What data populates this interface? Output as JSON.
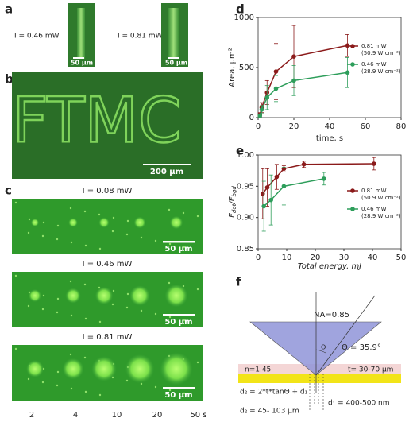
{
  "panel_a": {
    "letter": "a",
    "left_label": "I = 0.46 mW",
    "right_label": "I = 0.81 mW",
    "left_scale": "50 µm",
    "right_scale": "50 µm"
  },
  "panel_b": {
    "letter": "b",
    "pattern_text": "FTMC",
    "scale": "200 µm"
  },
  "panel_c": {
    "letter": "c",
    "rows": [
      {
        "label": "I = 0.08 mW",
        "scale": "50 µm"
      },
      {
        "label": "I = 0.46 mW",
        "scale": "50 µm"
      },
      {
        "label": "I = 0.81 mW",
        "scale": "50 µm"
      }
    ],
    "columns": [
      "2",
      "4",
      "10",
      "20",
      "50 s"
    ]
  },
  "chart_data": [
    {
      "type": "line",
      "letter": "d",
      "xlabel": "time, s",
      "ylabel": "Area, µm²",
      "xlim": [
        0,
        80
      ],
      "xticks": [
        0,
        20,
        40,
        60,
        80
      ],
      "ylim": [
        0,
        1000
      ],
      "yticks": [
        0,
        500,
        1000
      ],
      "series": [
        {
          "name": "0.81 mW",
          "subname": "(50.9 W cm⁻²)",
          "color": "#8b1a1a",
          "x": [
            1,
            2,
            5,
            10,
            20,
            50
          ],
          "values": [
            30,
            100,
            250,
            460,
            610,
            720
          ],
          "errors": [
            20,
            50,
            120,
            280,
            310,
            110
          ]
        },
        {
          "name": "0.46 mW",
          "subname": "(28.9 W cm⁻²)",
          "color": "#2e9e5b",
          "x": [
            1,
            2,
            5,
            10,
            20,
            50
          ],
          "values": [
            20,
            80,
            200,
            290,
            370,
            450
          ],
          "errors": [
            15,
            40,
            120,
            130,
            150,
            150
          ]
        }
      ]
    },
    {
      "type": "line",
      "letter": "e",
      "xlabel": "Total energy, mJ",
      "ylabel": {
        "f1": "F",
        "sub1": "dot",
        "sep": "/F",
        "sub2": "bgd"
      },
      "xlim": [
        0,
        50
      ],
      "xticks": [
        0,
        10,
        20,
        30,
        40,
        50
      ],
      "ylim": [
        0.85,
        1.0
      ],
      "yticks": [
        {
          "value": 0.85,
          "label": "0.85"
        },
        {
          "value": 0.9,
          "label": "0.90"
        },
        {
          "value": 0.95,
          "label": "0.95"
        },
        {
          "value": 1.0,
          "label": "1.00"
        }
      ],
      "series": [
        {
          "name": "0.81 mW",
          "subname": "(50.9 W cm⁻²)",
          "color": "#8b1a1a",
          "x": [
            1.6,
            3.2,
            6.5,
            9,
            16,
            40.5
          ],
          "values": [
            0.938,
            0.948,
            0.965,
            0.978,
            0.985,
            0.986
          ],
          "errors": [
            0.04,
            0.03,
            0.02,
            0.005,
            0.005,
            0.01
          ]
        },
        {
          "name": "0.46 mW",
          "subname": "(28.9 W cm⁻²)",
          "color": "#2e9e5b",
          "x": [
            2,
            4.5,
            9,
            23
          ],
          "values": [
            0.918,
            0.928,
            0.95,
            0.962
          ],
          "errors": [
            0.04,
            0.04,
            0.03,
            0.01
          ]
        }
      ]
    }
  ],
  "panel_f": {
    "letter": "f",
    "na": "NA=0.85",
    "theta_symbol": "Θ",
    "theta": "Θ = 35.9°",
    "n": "n=1.45",
    "t": "t= 30-70 µm",
    "formula": "d₂ = 2*t*tanΘ + d₁",
    "d1": "d₁ = 400-500 nm",
    "d2": "d₂ = 45- 103 µm"
  }
}
